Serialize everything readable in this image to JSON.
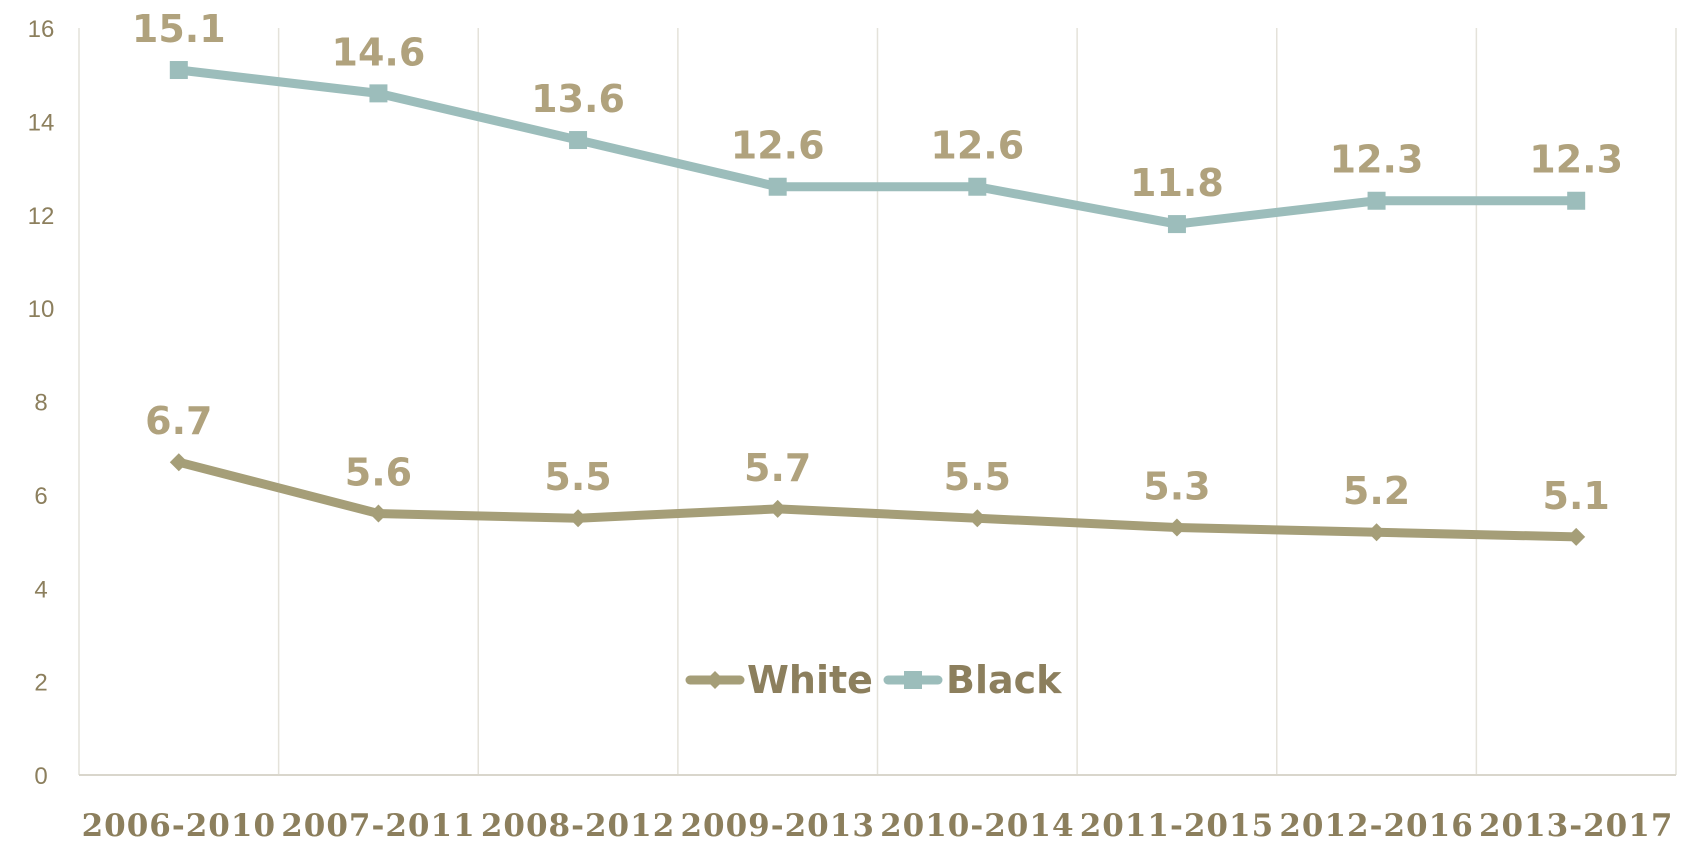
{
  "chart_data": {
    "type": "line",
    "title": "",
    "xlabel": "",
    "ylabel": "",
    "categories": [
      "2006-2010",
      "2007-2011",
      "2008-2012",
      "2009-2013",
      "2010-2014",
      "2011-2015",
      "2012-2016",
      "2013-2017"
    ],
    "ylim": [
      0,
      16
    ],
    "yticks": [
      0,
      2,
      4,
      6,
      8,
      10,
      12,
      14,
      16
    ],
    "grid": "vertical",
    "legend_position": "bottom-center",
    "series": [
      {
        "name": "White",
        "values": [
          6.7,
          5.6,
          5.5,
          5.7,
          5.5,
          5.3,
          5.2,
          5.1
        ],
        "labels": [
          "6.7",
          "5.6",
          "5.5",
          "5.7",
          "5.5",
          "5.3",
          "5.2",
          "5.1"
        ],
        "color": "#a59e78",
        "marker": "diamond"
      },
      {
        "name": "Black",
        "values": [
          15.1,
          14.6,
          13.6,
          12.6,
          12.6,
          11.8,
          12.3,
          12.3
        ],
        "labels": [
          "15.1",
          "14.6",
          "13.6",
          "12.6",
          "12.6",
          "11.8",
          "12.3",
          "12.3"
        ],
        "color": "#9cbdbb",
        "marker": "square"
      }
    ]
  },
  "colors": {
    "grid": "#e4e2da",
    "axis": "#d9d6cc",
    "tick_text": "#8c7f5d",
    "data_label": "#b0a27d"
  }
}
